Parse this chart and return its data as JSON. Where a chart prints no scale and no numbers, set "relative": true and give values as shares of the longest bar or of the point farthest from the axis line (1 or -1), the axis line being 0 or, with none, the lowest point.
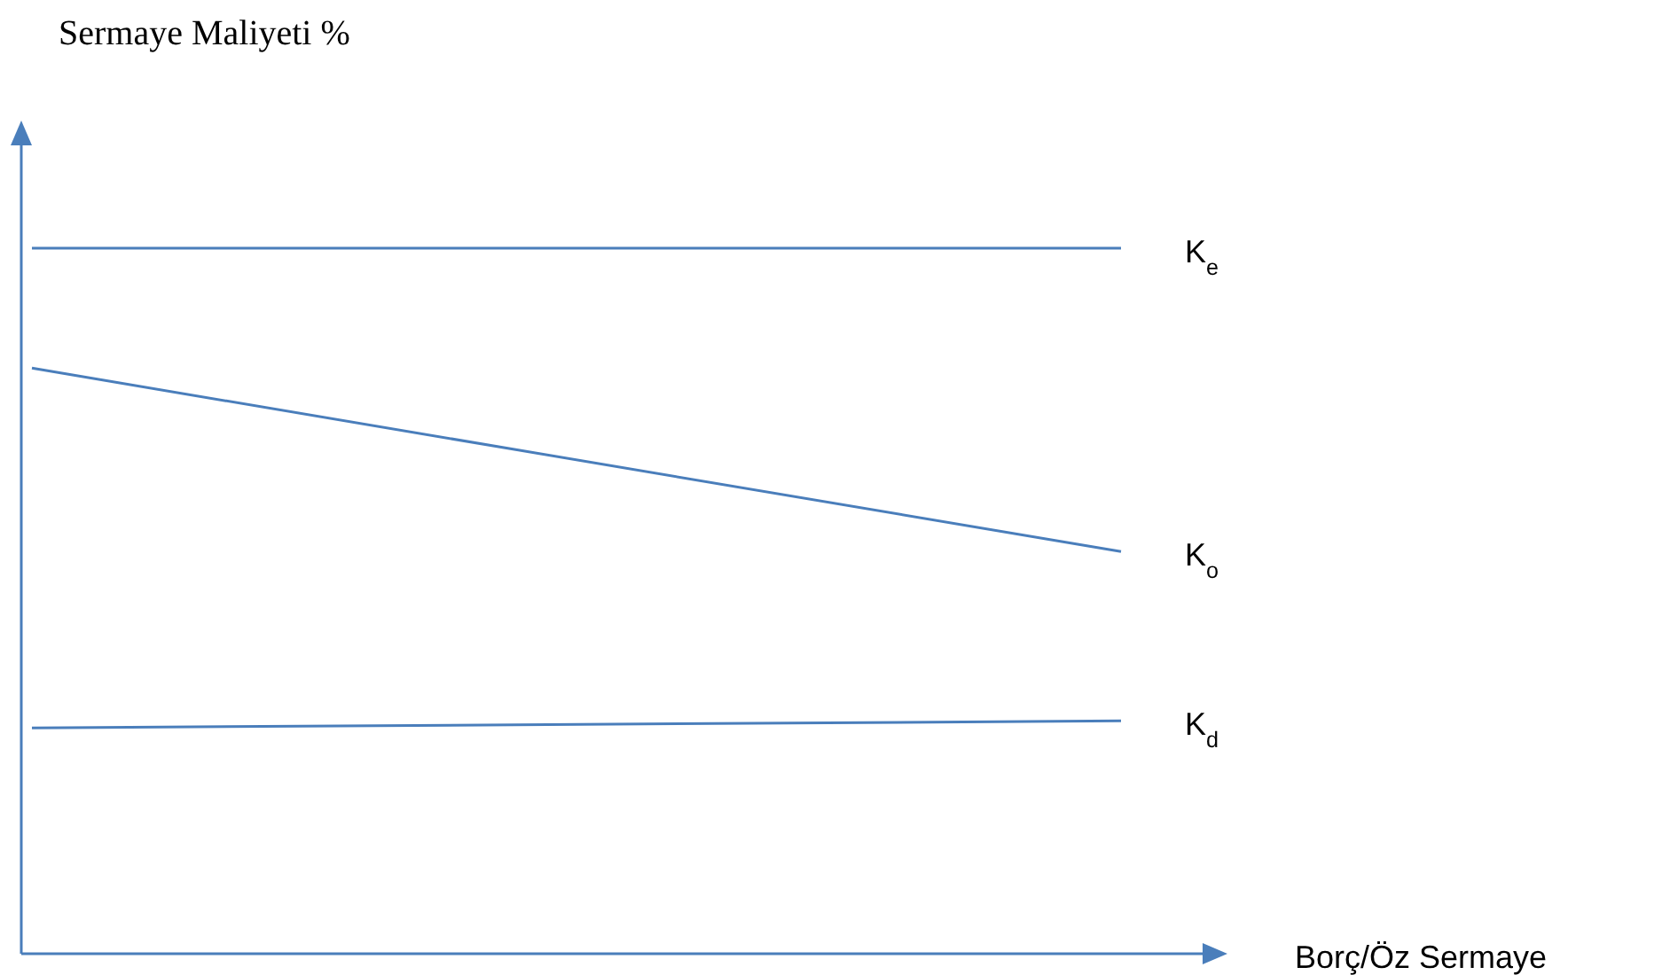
{
  "chart_data": {
    "type": "line",
    "relative": true,
    "title": "Sermaye Maliyeti %",
    "xlabel": "Borç/Öz Sermaye",
    "categories": [
      null,
      null
    ],
    "marker": "none",
    "line_style": "solid",
    "series": [
      {
        "name": "K$_{e}$",
        "color": "#4a7ebb",
        "values": [
          1,
          1
        ]
      },
      {
        "name": "K$_{o}$",
        "color": "#4a7ebb",
        "values": [
          0.83,
          0.57
        ]
      },
      {
        "name": "K$_{d}$",
        "color": "#4a7ebb",
        "values": [
          0.32,
          0.33
        ]
      }
    ]
  }
}
